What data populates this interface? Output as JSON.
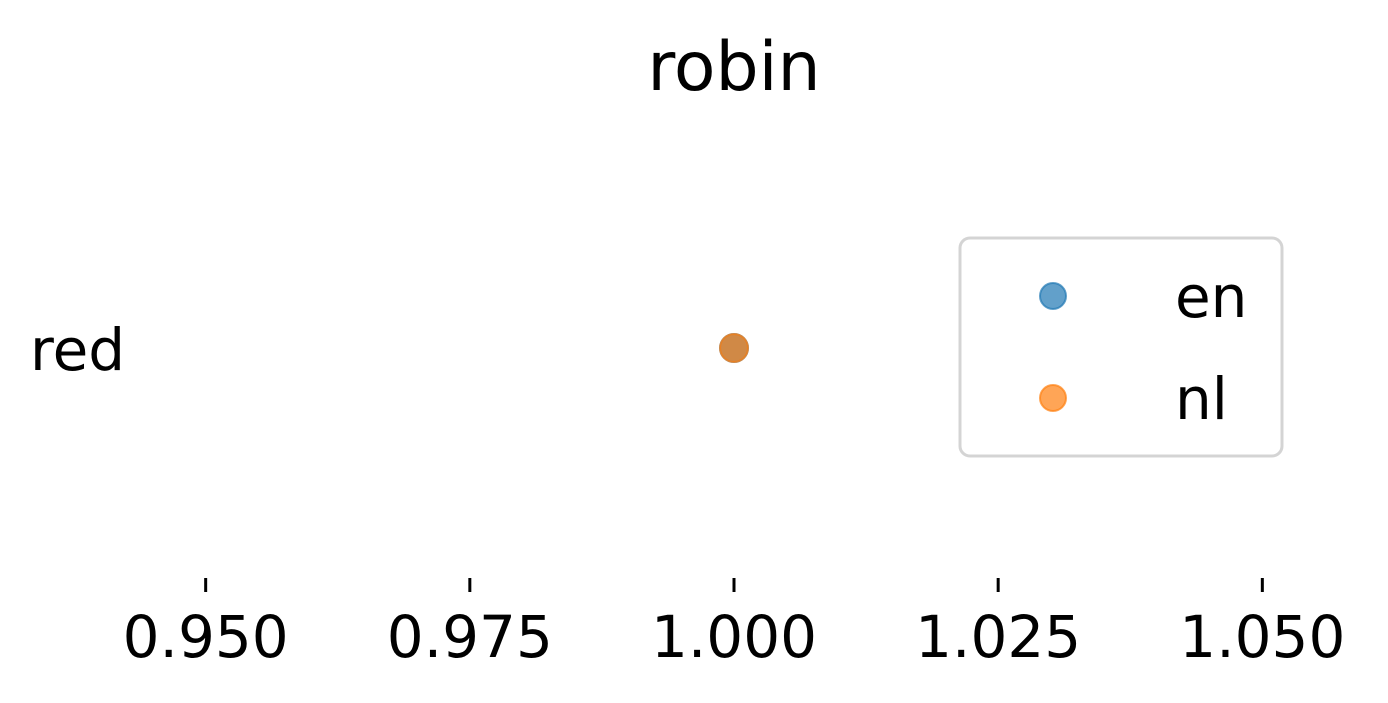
{
  "chart_data": {
    "type": "scatter",
    "title": "robin",
    "xlabel": "",
    "ylabel": "",
    "xlim": [
      0.94,
      1.06
    ],
    "x_ticks": [
      0.95,
      0.975,
      1.0,
      1.025,
      1.05
    ],
    "x_tick_labels": [
      "0.950",
      "0.975",
      "1.000",
      "1.025",
      "1.050"
    ],
    "categories": [
      "red"
    ],
    "series": [
      {
        "name": "en",
        "color": "#1f77b4",
        "points": [
          {
            "category": "red",
            "x": 1.0
          }
        ]
      },
      {
        "name": "nl",
        "color": "#ff7f0e",
        "points": [
          {
            "category": "red",
            "x": 1.0
          }
        ]
      }
    ],
    "marker_alpha": 0.7,
    "legend": {
      "placement": "right",
      "entries": [
        "en",
        "nl"
      ]
    },
    "grid": false
  }
}
